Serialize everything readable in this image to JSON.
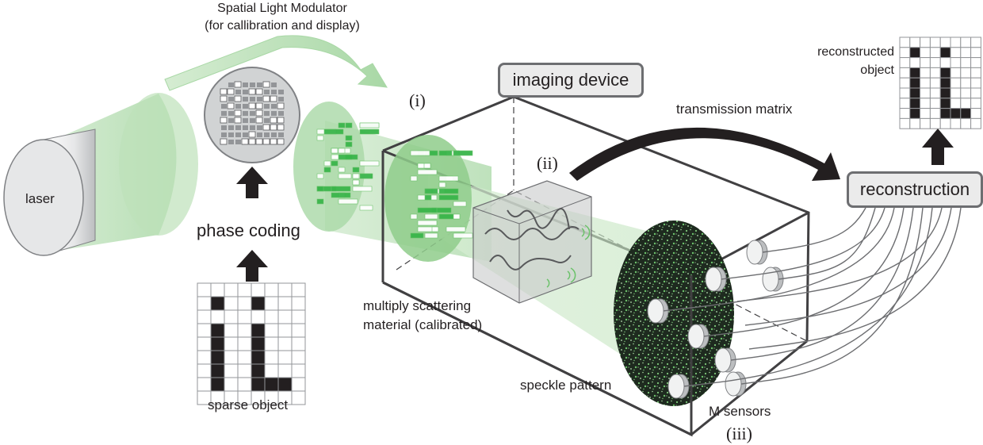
{
  "labels": {
    "slm_title_line1": "Spatial Light Modulator",
    "slm_title_line2": "(for callibration and display)",
    "laser": "laser",
    "phase_coding": "phase coding",
    "sparse_object": "sparse object",
    "roman_i": "(i)",
    "roman_ii": "(ii)",
    "roman_iii": "(iii)",
    "imaging_device": "imaging device",
    "transmission_matrix": "transmission matrix",
    "reconstruction": "reconstruction",
    "reconstructed_object_line1": "reconstructed",
    "reconstructed_object_line2": "object",
    "scattering_line1": "multiply scattering",
    "scattering_line2": "material (calibrated)",
    "speckle_pattern": "speckle pattern",
    "m_sensors": "M sensors"
  },
  "colors": {
    "beam_green": "#a9d8a6",
    "beam_green_dark": "#6cc26b",
    "frame_gray": "#414042",
    "label_gray": "#ebebeb",
    "arrow_black": "#231f20",
    "speckle_dark": "#1e2a1f"
  },
  "sparse_object_grid": {
    "rows": 9,
    "cols": 8,
    "filled": [
      [
        1,
        1
      ],
      [
        1,
        4
      ],
      [
        3,
        1
      ],
      [
        3,
        4
      ],
      [
        4,
        1
      ],
      [
        4,
        4
      ],
      [
        5,
        1
      ],
      [
        5,
        4
      ],
      [
        6,
        1
      ],
      [
        6,
        4
      ],
      [
        7,
        1
      ],
      [
        7,
        4
      ],
      [
        7,
        5
      ],
      [
        7,
        6
      ]
    ]
  },
  "reconstructed_object_grid": {
    "rows": 9,
    "cols": 8,
    "filled": [
      [
        1,
        1
      ],
      [
        1,
        4
      ],
      [
        3,
        1
      ],
      [
        3,
        4
      ],
      [
        4,
        1
      ],
      [
        4,
        4
      ],
      [
        5,
        1
      ],
      [
        5,
        4
      ],
      [
        6,
        1
      ],
      [
        6,
        4
      ],
      [
        7,
        1
      ],
      [
        7,
        4
      ],
      [
        7,
        5
      ],
      [
        7,
        6
      ]
    ]
  }
}
